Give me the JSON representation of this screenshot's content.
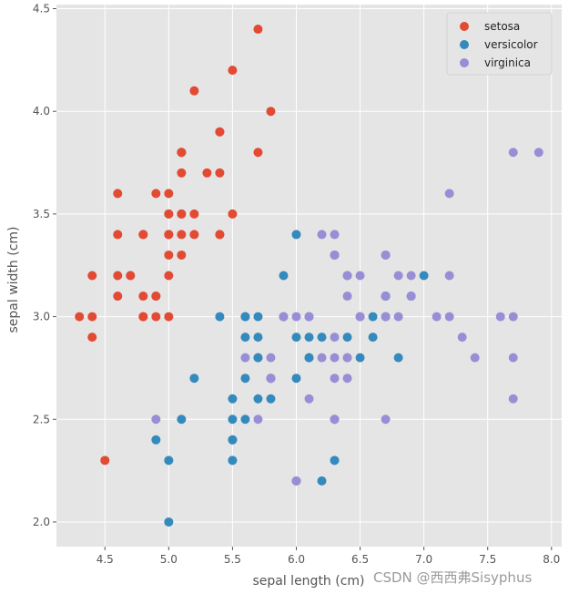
{
  "watermark": "CSDN @西西弗Sisyphus",
  "chart_data": {
    "type": "scatter",
    "title": "",
    "xlabel": "sepal length (cm)",
    "ylabel": "sepal width (cm)",
    "xlim": [
      4.12,
      8.08
    ],
    "ylim": [
      1.88,
      4.52
    ],
    "xticks": [
      4.5,
      5.0,
      5.5,
      6.0,
      6.5,
      7.0,
      7.5,
      8.0
    ],
    "xtick_labels": [
      "4.5",
      "5.0",
      "5.5",
      "6.0",
      "6.5",
      "7.0",
      "7.5",
      "8.0"
    ],
    "yticks": [
      2.0,
      2.5,
      3.0,
      3.5,
      4.0,
      4.5
    ],
    "ytick_labels": [
      "2.0",
      "2.5",
      "3.0",
      "3.5",
      "4.0",
      "4.5"
    ],
    "grid": true,
    "legend_position": "top-right",
    "series": [
      {
        "name": "setosa",
        "color": "#E24A33",
        "points": [
          [
            5.1,
            3.5
          ],
          [
            4.9,
            3.0
          ],
          [
            4.7,
            3.2
          ],
          [
            4.6,
            3.1
          ],
          [
            5.0,
            3.6
          ],
          [
            5.4,
            3.9
          ],
          [
            4.6,
            3.4
          ],
          [
            5.0,
            3.4
          ],
          [
            4.4,
            2.9
          ],
          [
            4.9,
            3.1
          ],
          [
            5.4,
            3.7
          ],
          [
            4.8,
            3.4
          ],
          [
            4.8,
            3.0
          ],
          [
            4.3,
            3.0
          ],
          [
            5.8,
            4.0
          ],
          [
            5.7,
            4.4
          ],
          [
            5.4,
            3.9
          ],
          [
            5.1,
            3.5
          ],
          [
            5.7,
            3.8
          ],
          [
            5.1,
            3.8
          ],
          [
            5.4,
            3.4
          ],
          [
            5.1,
            3.7
          ],
          [
            4.6,
            3.6
          ],
          [
            5.1,
            3.3
          ],
          [
            4.8,
            3.4
          ],
          [
            5.0,
            3.0
          ],
          [
            5.0,
            3.4
          ],
          [
            5.2,
            3.5
          ],
          [
            5.2,
            3.4
          ],
          [
            4.7,
            3.2
          ],
          [
            4.8,
            3.1
          ],
          [
            5.4,
            3.4
          ],
          [
            5.2,
            4.1
          ],
          [
            5.5,
            4.2
          ],
          [
            4.9,
            3.1
          ],
          [
            5.0,
            3.2
          ],
          [
            5.5,
            3.5
          ],
          [
            4.9,
            3.6
          ],
          [
            4.4,
            3.0
          ],
          [
            5.1,
            3.4
          ],
          [
            5.0,
            3.5
          ],
          [
            4.5,
            2.3
          ],
          [
            4.4,
            3.2
          ],
          [
            5.0,
            3.5
          ],
          [
            5.1,
            3.8
          ],
          [
            4.8,
            3.0
          ],
          [
            5.1,
            3.8
          ],
          [
            4.6,
            3.2
          ],
          [
            5.3,
            3.7
          ],
          [
            5.0,
            3.3
          ]
        ]
      },
      {
        "name": "versicolor",
        "color": "#348ABD",
        "points": [
          [
            7.0,
            3.2
          ],
          [
            6.4,
            3.2
          ],
          [
            6.9,
            3.1
          ],
          [
            5.5,
            2.3
          ],
          [
            6.5,
            2.8
          ],
          [
            5.7,
            2.8
          ],
          [
            6.3,
            3.3
          ],
          [
            4.9,
            2.4
          ],
          [
            6.6,
            2.9
          ],
          [
            5.2,
            2.7
          ],
          [
            5.0,
            2.0
          ],
          [
            5.9,
            3.0
          ],
          [
            6.0,
            2.2
          ],
          [
            6.1,
            2.9
          ],
          [
            5.6,
            2.9
          ],
          [
            6.7,
            3.1
          ],
          [
            5.6,
            3.0
          ],
          [
            5.8,
            2.7
          ],
          [
            6.2,
            2.2
          ],
          [
            5.6,
            2.5
          ],
          [
            5.9,
            3.2
          ],
          [
            6.1,
            2.8
          ],
          [
            6.3,
            2.5
          ],
          [
            6.1,
            2.8
          ],
          [
            6.4,
            2.9
          ],
          [
            6.6,
            3.0
          ],
          [
            6.8,
            2.8
          ],
          [
            6.7,
            3.0
          ],
          [
            6.0,
            2.9
          ],
          [
            5.7,
            2.6
          ],
          [
            5.5,
            2.4
          ],
          [
            5.5,
            2.4
          ],
          [
            5.8,
            2.7
          ],
          [
            6.0,
            2.7
          ],
          [
            5.4,
            3.0
          ],
          [
            6.0,
            3.4
          ],
          [
            6.7,
            3.1
          ],
          [
            6.3,
            2.3
          ],
          [
            5.6,
            3.0
          ],
          [
            5.5,
            2.5
          ],
          [
            5.5,
            2.6
          ],
          [
            6.1,
            3.0
          ],
          [
            5.8,
            2.6
          ],
          [
            5.0,
            2.3
          ],
          [
            5.6,
            2.7
          ],
          [
            5.7,
            3.0
          ],
          [
            5.7,
            2.9
          ],
          [
            6.2,
            2.9
          ],
          [
            5.1,
            2.5
          ],
          [
            5.7,
            2.8
          ]
        ]
      },
      {
        "name": "virginica",
        "color": "#988ED5",
        "points": [
          [
            6.3,
            3.3
          ],
          [
            5.8,
            2.7
          ],
          [
            7.1,
            3.0
          ],
          [
            6.3,
            2.9
          ],
          [
            6.5,
            3.0
          ],
          [
            7.6,
            3.0
          ],
          [
            4.9,
            2.5
          ],
          [
            7.3,
            2.9
          ],
          [
            6.7,
            2.5
          ],
          [
            7.2,
            3.6
          ],
          [
            6.5,
            3.2
          ],
          [
            6.4,
            2.7
          ],
          [
            6.8,
            3.0
          ],
          [
            5.7,
            2.5
          ],
          [
            5.8,
            2.8
          ],
          [
            6.4,
            3.2
          ],
          [
            6.5,
            3.0
          ],
          [
            7.7,
            3.8
          ],
          [
            7.7,
            2.6
          ],
          [
            6.0,
            2.2
          ],
          [
            6.9,
            3.2
          ],
          [
            5.6,
            2.8
          ],
          [
            7.7,
            2.8
          ],
          [
            6.3,
            2.7
          ],
          [
            6.7,
            3.3
          ],
          [
            7.2,
            3.2
          ],
          [
            6.2,
            2.8
          ],
          [
            6.1,
            3.0
          ],
          [
            6.4,
            2.8
          ],
          [
            7.2,
            3.0
          ],
          [
            7.4,
            2.8
          ],
          [
            7.9,
            3.8
          ],
          [
            6.4,
            2.8
          ],
          [
            6.3,
            2.8
          ],
          [
            6.1,
            2.6
          ],
          [
            7.7,
            3.0
          ],
          [
            6.3,
            3.4
          ],
          [
            6.4,
            3.1
          ],
          [
            6.0,
            3.0
          ],
          [
            6.9,
            3.1
          ],
          [
            6.7,
            3.1
          ],
          [
            6.9,
            3.1
          ],
          [
            5.8,
            2.7
          ],
          [
            6.8,
            3.2
          ],
          [
            6.7,
            3.3
          ],
          [
            6.7,
            3.0
          ],
          [
            6.3,
            2.5
          ],
          [
            6.5,
            3.0
          ],
          [
            6.2,
            3.4
          ],
          [
            5.9,
            3.0
          ]
        ]
      }
    ]
  }
}
